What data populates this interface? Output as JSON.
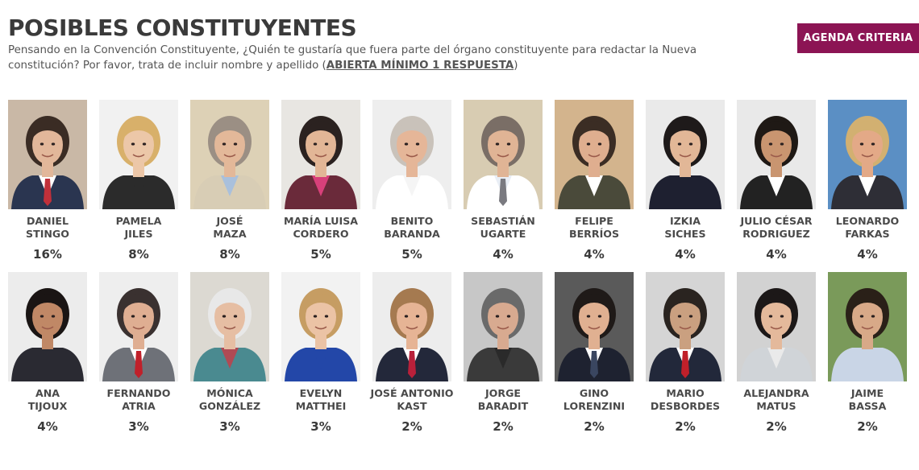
{
  "header": {
    "title": "POSIBLES CONSTITUYENTES",
    "subtitle_text": "Pensando en la Convención Constituyente, ¿Quién te gustaría que fuera parte del órgano constituyente para redactar la Nueva constitución? Por favor, trata de incluir nombre y apellido (",
    "subtitle_link": "ABIERTA MÍNIMO 1 RESPUESTA",
    "subtitle_end": ")",
    "button_label": "AGENDA CRITERIA",
    "accent_color": "#8c1454"
  },
  "candidates": [
    {
      "first": "DANIEL",
      "last": "STINGO",
      "percent": "16%",
      "bg": "#c9b8a6",
      "skin": "#e2b79a",
      "hair": "#3a2c24",
      "shirt": "#ffffff",
      "jacket": "#2a3550",
      "tie": "#c0303a"
    },
    {
      "first": "PAMELA",
      "last": "JILES",
      "percent": "8%",
      "bg": "#f1f1f1",
      "skin": "#ecc7a8",
      "hair": "#d8b06a",
      "shirt": "#2b2b2b",
      "jacket": "#2b2b2b",
      "tie": ""
    },
    {
      "first": "JOSÉ",
      "last": "MAZA",
      "percent": "8%",
      "bg": "#ddd1b6",
      "skin": "#e3b899",
      "hair": "#9b8f84",
      "shirt": "#a9c0dc",
      "jacket": "#d8cdb5",
      "tie": ""
    },
    {
      "first": "MARÍA LUISA",
      "last": "CORDERO",
      "percent": "5%",
      "bg": "#e8e6e2",
      "skin": "#e2b696",
      "hair": "#2b2220",
      "shirt": "#d8407a",
      "jacket": "#6a2a3a",
      "tie": ""
    },
    {
      "first": "BENITO",
      "last": "BARANDA",
      "percent": "5%",
      "bg": "#eeeeee",
      "skin": "#e5b698",
      "hair": "#c9c2ba",
      "shirt": "#f5f5f5",
      "jacket": "#ffffff",
      "tie": ""
    },
    {
      "first": "SEBASTIÁN",
      "last": "UGARTE",
      "percent": "4%",
      "bg": "#d8ccb2",
      "skin": "#e0b495",
      "hair": "#7a6e66",
      "shirt": "#e9eef5",
      "jacket": "#ffffff",
      "tie": "#7a7a80"
    },
    {
      "first": "FELIPE",
      "last": "BERRÍOS",
      "percent": "4%",
      "bg": "#d3b48d",
      "skin": "#dfae8f",
      "hair": "#3b2d24",
      "shirt": "#ffffff",
      "jacket": "#4a4a3a",
      "tie": ""
    },
    {
      "first": "IZKIA",
      "last": "SICHES",
      "percent": "4%",
      "bg": "#eaeaea",
      "skin": "#e2b797",
      "hair": "#1e1a1a",
      "shirt": "#1e2030",
      "jacket": "#1e2030",
      "tie": ""
    },
    {
      "first": "JULIO CÉSAR",
      "last": "RODRIGUEZ",
      "percent": "4%",
      "bg": "#e9e9e9",
      "skin": "#c99570",
      "hair": "#1f1915",
      "shirt": "#ffffff",
      "jacket": "#222",
      "tie": ""
    },
    {
      "first": "LEONARDO",
      "last": "FARKAS",
      "percent": "4%",
      "bg": "#5b8fc4",
      "skin": "#e3a987",
      "hair": "#d2b071",
      "shirt": "#ffffff",
      "jacket": "#2e2e36",
      "tie": ""
    },
    {
      "first": "ANA",
      "last": "TIJOUX",
      "percent": "4%",
      "bg": "#ececec",
      "skin": "#c08866",
      "hair": "#1a1514",
      "shirt": "#2a2a32",
      "jacket": "#2a2a32",
      "tie": ""
    },
    {
      "first": "FERNANDO",
      "last": "ATRIA",
      "percent": "3%",
      "bg": "#eeeeee",
      "skin": "#dfae92",
      "hair": "#3a3130",
      "shirt": "#ffffff",
      "jacket": "#6e7178",
      "tie": "#c0202a"
    },
    {
      "first": "MÓNICA",
      "last": "GONZÁLEZ",
      "percent": "3%",
      "bg": "#dcd9d2",
      "skin": "#e6bea3",
      "hair": "#e8e8e8",
      "shirt": "#b04a54",
      "jacket": "#4a8a90",
      "tie": ""
    },
    {
      "first": "EVELYN",
      "last": "MATTHEI",
      "percent": "3%",
      "bg": "#f2f2f2",
      "skin": "#ebc3a5",
      "hair": "#c69d63",
      "shirt": "#2347a8",
      "jacket": "#2347a8",
      "tie": ""
    },
    {
      "first": "JOSÉ ANTONIO",
      "last": "KAST",
      "percent": "2%",
      "bg": "#ededed",
      "skin": "#e6b495",
      "hair": "#a57a50",
      "shirt": "#ffffff",
      "jacket": "#23283a",
      "tie": "#b8203a"
    },
    {
      "first": "JORGE",
      "last": "BARADIT",
      "percent": "2%",
      "bg": "#c7c7c7",
      "skin": "#d8aa90",
      "hair": "#6a6a6a",
      "shirt": "#2a2a2a",
      "jacket": "#3a3a3a",
      "tie": ""
    },
    {
      "first": "GINO",
      "last": "LORENZINI",
      "percent": "2%",
      "bg": "#5a5a5a",
      "skin": "#e0b091",
      "hair": "#1f1a18",
      "shirt": "#ffffff",
      "jacket": "#1e2230",
      "tie": "#3a4660"
    },
    {
      "first": "MARIO",
      "last": "DESBORDES",
      "percent": "2%",
      "bg": "#d5d5d5",
      "skin": "#caa080",
      "hair": "#2a2420",
      "shirt": "#ffffff",
      "jacket": "#22283a",
      "tie": "#c0202a"
    },
    {
      "first": "ALEJANDRA",
      "last": "MATUS",
      "percent": "2%",
      "bg": "#d2d2d2",
      "skin": "#e4b99b",
      "hair": "#1c1818",
      "shirt": "#eaeaea",
      "jacket": "#d0d4d8",
      "tie": ""
    },
    {
      "first": "JAIME",
      "last": "BASSA",
      "percent": "2%",
      "bg": "#7a9a5a",
      "skin": "#d8a988",
      "hair": "#2a2018",
      "shirt": "#c9d5e6",
      "jacket": "#c9d5e6",
      "tie": ""
    }
  ]
}
